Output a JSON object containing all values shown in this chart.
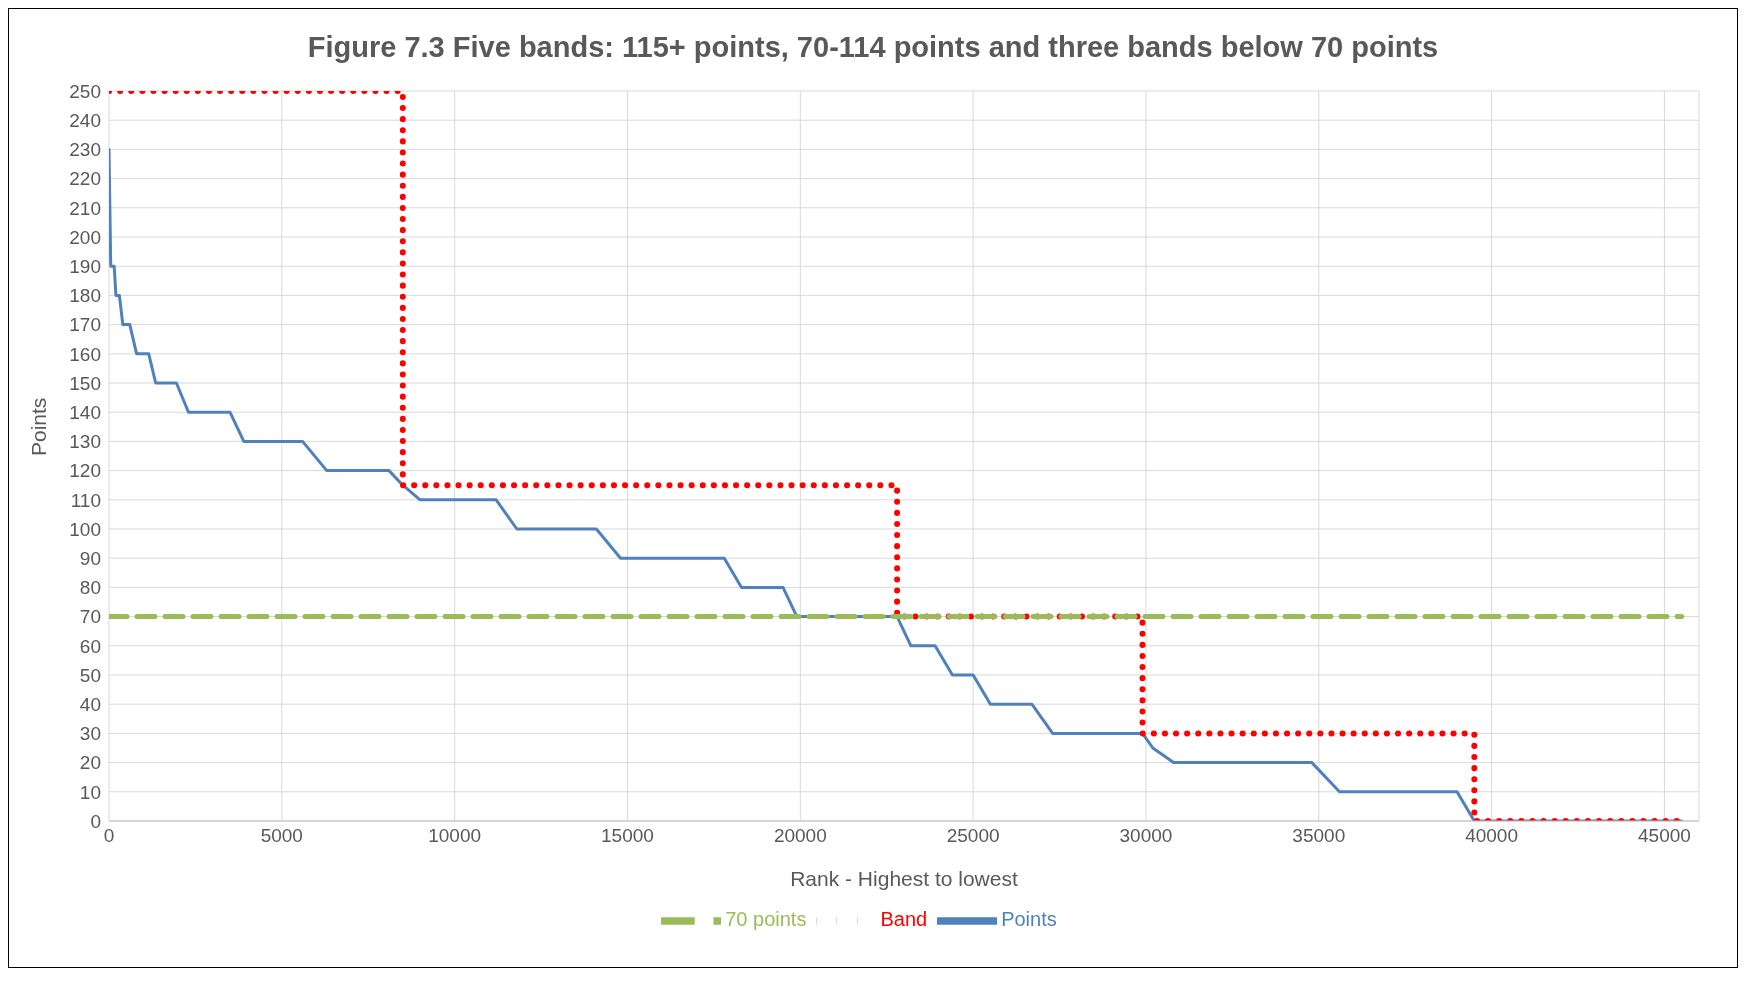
{
  "chart_data": {
    "type": "line",
    "title": "Figure 7.3 Five bands: 115+ points, 70-114 points and three bands below 70 points",
    "xlabel": "Rank - Highest to lowest",
    "ylabel": "Points",
    "series": [
      {
        "name": "Points",
        "color": "#4f81bd",
        "line_style": "solid",
        "x": [
          0,
          50,
          150,
          200,
          300,
          400,
          600,
          800,
          1150,
          1350,
          1950,
          2300,
          3500,
          3900,
          5600,
          6300,
          8100,
          8500,
          9000,
          11200,
          11800,
          14100,
          14800,
          17800,
          18300,
          19500,
          19900,
          22800,
          23200,
          23900,
          24400,
          25000,
          25500,
          26700,
          27300,
          29900,
          30200,
          30800,
          34800,
          35600,
          39000,
          39500,
          45500
        ],
        "values": [
          230,
          190,
          190,
          180,
          180,
          170,
          170,
          160,
          160,
          150,
          150,
          140,
          140,
          130,
          130,
          120,
          120,
          115,
          110,
          110,
          100,
          100,
          90,
          90,
          80,
          80,
          70,
          70,
          60,
          60,
          50,
          50,
          40,
          40,
          30,
          30,
          25,
          20,
          20,
          10,
          10,
          0,
          0
        ]
      },
      {
        "name": "Band",
        "color": "#ff0000",
        "line_style": "dotted",
        "x": [
          0,
          8500,
          8500,
          22800,
          22800,
          29900,
          29900,
          39500,
          39500,
          45500
        ],
        "values": [
          250,
          250,
          115,
          115,
          70,
          70,
          30,
          30,
          0,
          0
        ]
      },
      {
        "name": "70 points",
        "color": "#9bbb59",
        "line_style": "dashed",
        "x": [
          0,
          45500
        ],
        "values": [
          70,
          70
        ]
      }
    ],
    "xlim": [
      0,
      46000
    ],
    "xticks": [
      0,
      5000,
      10000,
      15000,
      20000,
      25000,
      30000,
      35000,
      40000,
      45000
    ],
    "ylim": [
      0,
      250
    ],
    "yticks": [
      0,
      10,
      20,
      30,
      40,
      50,
      60,
      70,
      80,
      90,
      100,
      110,
      120,
      130,
      140,
      150,
      160,
      170,
      180,
      190,
      200,
      210,
      220,
      230,
      240,
      250
    ],
    "grid": true,
    "legend": "bottom",
    "marker": "none"
  }
}
